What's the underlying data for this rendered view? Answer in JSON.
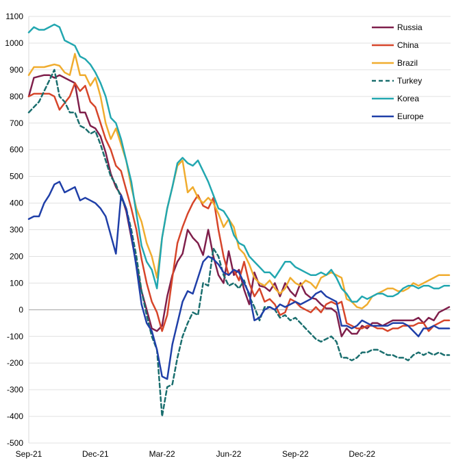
{
  "chart_data": {
    "type": "line",
    "title": "",
    "xlabel": "",
    "ylabel": "",
    "ylim": [
      -500,
      1100
    ],
    "yticks": [
      1100,
      1000,
      900,
      800,
      700,
      600,
      500,
      400,
      300,
      200,
      100,
      0,
      -100,
      -200,
      -300,
      -400,
      -500
    ],
    "x_tick_labels": [
      "Sep-21",
      "Dec-21",
      "Mar-22",
      "Jun-22",
      "Sep-22",
      "Dec-22"
    ],
    "x_tick_weeks": [
      0,
      13,
      26,
      39,
      52,
      65
    ],
    "grid": "horizontal",
    "legend_position": "top-right",
    "x_unit": "weeks",
    "series": [
      {
        "name": "Russia",
        "color": "#7f1f4b",
        "dash": false,
        "values": [
          800,
          870,
          875,
          880,
          880,
          870,
          880,
          870,
          860,
          850,
          740,
          740,
          690,
          680,
          650,
          590,
          510,
          460,
          430,
          370,
          270,
          170,
          70,
          0,
          -70,
          -80,
          -60,
          50,
          130,
          180,
          210,
          300,
          270,
          250,
          205,
          300,
          200,
          130,
          100,
          220,
          130,
          150,
          75,
          20,
          140,
          90,
          85,
          70,
          100,
          50,
          100,
          70,
          50,
          100,
          60,
          45,
          40,
          20,
          5,
          5,
          -10,
          -100,
          -70,
          -90,
          -90,
          -60,
          -70,
          -50,
          -50,
          -60,
          -50,
          -40,
          -40,
          -40,
          -40,
          -40,
          -30,
          -50,
          -30,
          -40,
          -10,
          0,
          10
        ]
      },
      {
        "name": "China",
        "color": "#d6452a",
        "dash": false,
        "values": [
          800,
          810,
          810,
          810,
          810,
          800,
          750,
          775,
          800,
          850,
          820,
          840,
          780,
          760,
          700,
          640,
          600,
          540,
          520,
          450,
          380,
          300,
          190,
          100,
          30,
          -10,
          -80,
          -20,
          120,
          250,
          310,
          360,
          400,
          430,
          390,
          380,
          420,
          300,
          200,
          130,
          150,
          110,
          180,
          100,
          50,
          80,
          30,
          40,
          20,
          -20,
          -10,
          40,
          30,
          10,
          0,
          -10,
          10,
          -10,
          20,
          30,
          20,
          30,
          -50,
          -60,
          -70,
          -70,
          -60,
          -60,
          -70,
          -70,
          -80,
          -70,
          -70,
          -60,
          -60,
          -60,
          -50,
          -50,
          -80,
          -60,
          -50,
          -40,
          -40
        ]
      },
      {
        "name": "Brazil",
        "color": "#f0ac2e",
        "dash": false,
        "values": [
          880,
          910,
          910,
          910,
          915,
          920,
          915,
          890,
          880,
          960,
          880,
          880,
          840,
          870,
          800,
          700,
          640,
          680,
          620,
          560,
          460,
          380,
          330,
          250,
          200,
          120,
          270,
          380,
          460,
          540,
          560,
          440,
          460,
          420,
          400,
          420,
          400,
          360,
          310,
          340,
          310,
          230,
          210,
          170,
          120,
          100,
          90,
          110,
          80,
          60,
          80,
          120,
          100,
          90,
          110,
          100,
          80,
          120,
          130,
          140,
          130,
          120,
          40,
          30,
          10,
          5,
          20,
          50,
          60,
          70,
          80,
          80,
          70,
          70,
          80,
          100,
          90,
          100,
          110,
          120,
          130,
          130,
          130
        ]
      },
      {
        "name": "Turkey",
        "color": "#1a6e6e",
        "dash": true,
        "values": [
          740,
          760,
          780,
          820,
          860,
          900,
          800,
          780,
          740,
          740,
          690,
          680,
          660,
          670,
          620,
          560,
          500,
          470,
          420,
          380,
          300,
          200,
          70,
          -20,
          -100,
          -150,
          -400,
          -290,
          -280,
          -180,
          -100,
          -50,
          -10,
          -20,
          100,
          90,
          230,
          200,
          130,
          90,
          100,
          80,
          110,
          50,
          10,
          -40,
          10,
          10,
          0,
          -30,
          -20,
          -40,
          -30,
          -50,
          -70,
          -90,
          -110,
          -120,
          -110,
          -100,
          -120,
          -180,
          -180,
          -190,
          -180,
          -160,
          -160,
          -150,
          -150,
          -160,
          -170,
          -170,
          -180,
          -180,
          -190,
          -170,
          -160,
          -170,
          -160,
          -170,
          -160,
          -170,
          -170
        ]
      },
      {
        "name": "Korea",
        "color": "#22a7b0",
        "dash": false,
        "values": [
          1040,
          1060,
          1050,
          1050,
          1060,
          1070,
          1060,
          1010,
          1000,
          990,
          950,
          940,
          920,
          890,
          850,
          800,
          720,
          700,
          640,
          560,
          480,
          360,
          240,
          180,
          150,
          80,
          270,
          380,
          460,
          550,
          570,
          550,
          540,
          560,
          520,
          480,
          430,
          380,
          370,
          340,
          280,
          250,
          240,
          200,
          180,
          160,
          140,
          140,
          120,
          150,
          180,
          180,
          160,
          150,
          140,
          130,
          130,
          140,
          130,
          150,
          120,
          80,
          60,
          30,
          30,
          50,
          40,
          50,
          60,
          60,
          50,
          50,
          60,
          80,
          90,
          90,
          80,
          90,
          90,
          80,
          80,
          90,
          90
        ]
      },
      {
        "name": "Europe",
        "color": "#1f3fa8",
        "dash": false,
        "values": [
          340,
          350,
          350,
          400,
          430,
          470,
          480,
          440,
          450,
          460,
          410,
          420,
          410,
          400,
          380,
          350,
          280,
          210,
          430,
          380,
          280,
          160,
          20,
          -50,
          -80,
          -150,
          -250,
          -260,
          -130,
          -50,
          30,
          70,
          60,
          120,
          180,
          200,
          190,
          170,
          140,
          130,
          150,
          140,
          100,
          60,
          -40,
          -30,
          0,
          10,
          0,
          20,
          10,
          20,
          30,
          20,
          30,
          40,
          60,
          70,
          50,
          40,
          30,
          -60,
          -60,
          -70,
          -60,
          -40,
          -50,
          -60,
          -60,
          -60,
          -60,
          -50,
          -50,
          -50,
          -60,
          -80,
          -100,
          -70,
          -70,
          -60,
          -70,
          -70,
          -70
        ]
      }
    ]
  }
}
